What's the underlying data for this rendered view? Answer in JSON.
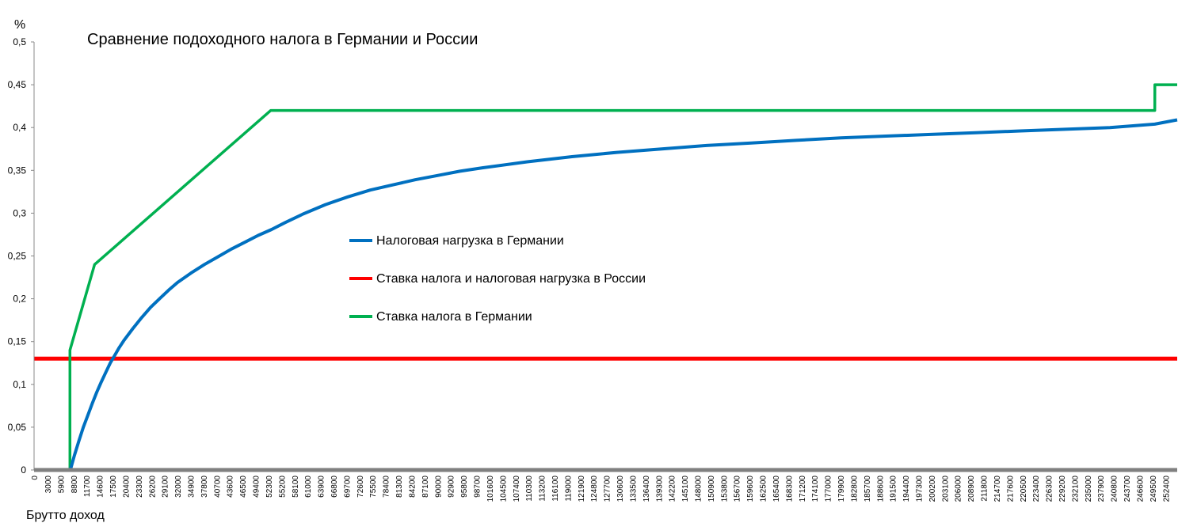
{
  "chart_data": {
    "type": "line",
    "title": "Сравнение подоходного налога в Германии и России",
    "ylabel": "%",
    "xlabel": "Брутто доход",
    "xlim": [
      0,
      255000
    ],
    "ylim": [
      0,
      0.5
    ],
    "y_ticks": [
      "0",
      "0,05",
      "0,1",
      "0,15",
      "0,2",
      "0,25",
      "0,3",
      "0,35",
      "0,4",
      "0,45",
      "0,5"
    ],
    "x_ticks": [
      "0",
      "3000",
      "5900",
      "8800",
      "11700",
      "14600",
      "17500",
      "20400",
      "23300",
      "26200",
      "29100",
      "32000",
      "34900",
      "37800",
      "40700",
      "43600",
      "46500",
      "49400",
      "52300",
      "55200",
      "58100",
      "61000",
      "63900",
      "66800",
      "69700",
      "72600",
      "75500",
      "78400",
      "81300",
      "84200",
      "87100",
      "90000",
      "92900",
      "95800",
      "98700",
      "101600",
      "104500",
      "107400",
      "110300",
      "113200",
      "116100",
      "119000",
      "121900",
      "124800",
      "127700",
      "130600",
      "133500",
      "136400",
      "139300",
      "142200",
      "145100",
      "148000",
      "150900",
      "153800",
      "156700",
      "159600",
      "162500",
      "165400",
      "168300",
      "171200",
      "174100",
      "177000",
      "179900",
      "182800",
      "185700",
      "188600",
      "191500",
      "194400",
      "197300",
      "200200",
      "203100",
      "206000",
      "208900",
      "211800",
      "214700",
      "217600",
      "220500",
      "223400",
      "226300",
      "229200",
      "232100",
      "235000",
      "237900",
      "240800",
      "243700",
      "246600",
      "249500",
      "252400"
    ],
    "grid": false,
    "legend_position": "center",
    "series": [
      {
        "name": "Налоговая нагрузка в Германии",
        "color": "#0070c0",
        "x": [
          0,
          8000,
          8100,
          9000,
          10000,
          11000,
          12000,
          13000,
          14000,
          15000,
          16000,
          17000,
          18000,
          19000,
          20000,
          22000,
          24000,
          26000,
          28000,
          30000,
          32000,
          35000,
          38000,
          41000,
          44000,
          47000,
          50000,
          53000,
          56000,
          60000,
          65000,
          70000,
          75000,
          80000,
          85000,
          90000,
          95000,
          100000,
          110000,
          120000,
          130000,
          140000,
          150000,
          160000,
          170000,
          180000,
          190000,
          200000,
          210000,
          220000,
          230000,
          240000,
          250000,
          255000
        ],
        "y": [
          0,
          0,
          0.0,
          0.017,
          0.034,
          0.05,
          0.064,
          0.078,
          0.091,
          0.103,
          0.114,
          0.125,
          0.134,
          0.143,
          0.151,
          0.165,
          0.178,
          0.19,
          0.2,
          0.21,
          0.219,
          0.23,
          0.24,
          0.249,
          0.258,
          0.266,
          0.274,
          0.281,
          0.289,
          0.299,
          0.31,
          0.319,
          0.327,
          0.333,
          0.339,
          0.344,
          0.349,
          0.353,
          0.36,
          0.366,
          0.371,
          0.375,
          0.379,
          0.382,
          0.385,
          0.388,
          0.39,
          0.392,
          0.394,
          0.396,
          0.398,
          0.4,
          0.404,
          0.409
        ]
      },
      {
        "name": "Ставка налога и налоговая нагрузка в России",
        "color": "#ff0000",
        "x": [
          0,
          255000
        ],
        "y": [
          0.13,
          0.13
        ]
      },
      {
        "name": "Ставка налога в Германии",
        "color": "#00b050",
        "x": [
          0,
          8000,
          8010,
          13500,
          52800,
          250000,
          250010,
          255000
        ],
        "y": [
          0,
          0,
          0.14,
          0.24,
          0.42,
          0.42,
          0.45,
          0.45
        ]
      }
    ]
  }
}
